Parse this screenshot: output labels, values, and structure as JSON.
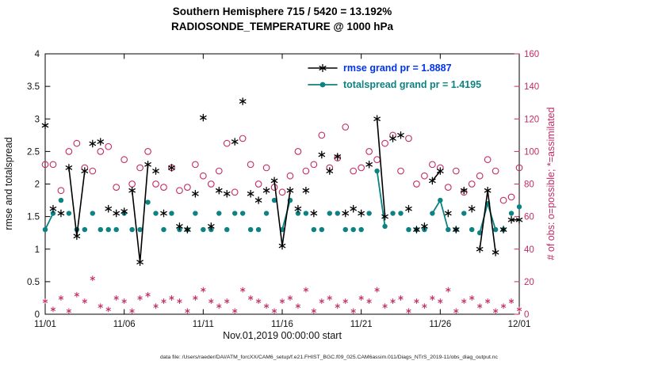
{
  "chart_data": {
    "type": "line",
    "title": {
      "line1": "Southern Hemisphere 715 / 5420 = 13.192%",
      "line2": "RADIOSONDE_TEMPERATURE @ 1000 hPa"
    },
    "xlabel": "Nov.01,2019 00:00:00 start",
    "ylabel_left": "rmse and totalspread",
    "ylabel_right": "# of obs: o=possible; *=assimilated",
    "caption": "data file: /Users/raeder/DAI/ATM_forcXX/CAM6_setup/f.e21.FHIST_BGC.f09_025.CAM6assim.011/Diags_NTrS_2019-11/obs_diag_output.nc",
    "grid": false,
    "legend_position": "top-center-inside",
    "colors": {
      "obs": "#c42a66",
      "spread": "#0d8282",
      "rmse": "#000000",
      "rmse_text": "#0033ee"
    },
    "xaxis": {
      "min": 0,
      "max": 30,
      "tick_days": [
        0,
        5,
        10,
        15,
        20,
        25,
        30
      ],
      "tick_labels": [
        "11/01",
        "11/06",
        "11/11",
        "11/16",
        "11/21",
        "11/26",
        "12/01"
      ]
    },
    "yaxis_left": {
      "min": 0,
      "max": 4,
      "ticks": [
        0,
        0.5,
        1,
        1.5,
        2,
        2.5,
        3,
        3.5,
        4
      ],
      "tick_labels": [
        "0",
        "0.5",
        "1",
        "1.5",
        "2",
        "2.5",
        "3",
        "3.5",
        "4"
      ]
    },
    "yaxis_right": {
      "min": 0,
      "max": 160,
      "ticks": [
        0,
        20,
        40,
        60,
        80,
        100,
        120,
        140,
        160
      ],
      "tick_labels": [
        "0",
        "20",
        "40",
        "60",
        "80",
        "100",
        "120",
        "140",
        "160"
      ]
    },
    "x_days": [
      0,
      0.5,
      1,
      1.5,
      2,
      2.5,
      3,
      3.5,
      4,
      4.5,
      5,
      5.5,
      6,
      6.5,
      7,
      7.5,
      8,
      8.5,
      9,
      9.5,
      10,
      10.5,
      11,
      11.5,
      12,
      12.5,
      13,
      13.5,
      14,
      14.5,
      15,
      15.5,
      16,
      16.5,
      17,
      17.5,
      18,
      18.5,
      19,
      19.5,
      20,
      20.5,
      21,
      21.5,
      22,
      22.5,
      23,
      23.5,
      24,
      24.5,
      25,
      25.5,
      26,
      26.5,
      27,
      27.5,
      28,
      28.5,
      29,
      29.5,
      30
    ],
    "series": [
      {
        "name": "rmse",
        "legend_label": "rmse grand pr = 1.8887",
        "grand_value": 1.8887,
        "marker": "asterisk",
        "color": "#000000",
        "text_color": "#0033ee",
        "axis": "left",
        "values": [
          2.9,
          1.62,
          1.55,
          2.25,
          1.2,
          2.2,
          2.62,
          2.65,
          1.62,
          1.55,
          1.58,
          1.9,
          0.8,
          2.3,
          2.2,
          1.55,
          2.25,
          1.35,
          1.3,
          1.85,
          3.02,
          1.35,
          1.9,
          1.85,
          2.65,
          3.27,
          1.85,
          1.75,
          1.9,
          2.05,
          1.05,
          1.9,
          1.62,
          1.9,
          1.55,
          2.45,
          2.2,
          2.42,
          1.55,
          1.62,
          1.55,
          2.3,
          3.0,
          1.5,
          2.7,
          2.75,
          1.62,
          1.3,
          1.35,
          2.05,
          2.2,
          1.55,
          1.3,
          1.9,
          1.62,
          1.0,
          1.9,
          0.95,
          1.3,
          1.45,
          1.45
        ],
        "line_segments": [
          [
            3,
            5
          ],
          [
            11,
            13
          ],
          [
            29,
            31
          ],
          [
            42,
            43
          ],
          [
            49,
            50
          ],
          [
            55,
            57
          ],
          [
            59,
            60
          ]
        ]
      },
      {
        "name": "totalspread",
        "legend_label": "totalspread grand pr = 1.4195",
        "grand_value": 1.4195,
        "marker": "dot",
        "color": "#0d8282",
        "text_color": "#0d8282",
        "axis": "left",
        "values": [
          1.3,
          1.55,
          1.75,
          1.55,
          1.3,
          1.3,
          1.55,
          1.3,
          1.3,
          1.3,
          1.55,
          1.3,
          1.3,
          1.72,
          1.55,
          1.3,
          1.55,
          1.3,
          1.3,
          1.55,
          1.3,
          1.3,
          1.55,
          1.3,
          1.55,
          1.55,
          1.3,
          1.3,
          1.55,
          1.75,
          1.3,
          1.75,
          1.55,
          1.55,
          1.3,
          1.3,
          1.55,
          1.55,
          1.3,
          1.3,
          1.3,
          1.55,
          2.2,
          1.35,
          1.55,
          1.55,
          1.3,
          1.3,
          1.3,
          1.55,
          1.75,
          1.3,
          1.3,
          1.55,
          1.3,
          1.25,
          1.7,
          1.3,
          1.3,
          1.55,
          1.65
        ],
        "line_segments": [
          [
            0,
            1
          ],
          [
            30,
            31
          ],
          [
            42,
            43
          ],
          [
            49,
            51
          ],
          [
            55,
            57
          ]
        ]
      },
      {
        "name": "possible",
        "legend_label": "o=possible",
        "marker": "open-circle",
        "color": "#c42a66",
        "axis": "right",
        "values": [
          92,
          92,
          76,
          100,
          105,
          90,
          88,
          100,
          103,
          78,
          95,
          80,
          90,
          100,
          80,
          78,
          90,
          76,
          78,
          92,
          85,
          80,
          88,
          105,
          75,
          108,
          92,
          80,
          90,
          78,
          75,
          85,
          100,
          88,
          92,
          110,
          90,
          96,
          115,
          88,
          90,
          100,
          95,
          105,
          110,
          88,
          108,
          80,
          85,
          92,
          90,
          78,
          88,
          75,
          80,
          85,
          95,
          88,
          70,
          72,
          90
        ]
      },
      {
        "name": "assimilated",
        "legend_label": "*=assimilated",
        "marker": "small-asterisk",
        "color": "#c42a66",
        "axis": "right",
        "values": [
          8,
          3,
          10,
          2,
          12,
          8,
          22,
          5,
          3,
          10,
          8,
          2,
          10,
          12,
          5,
          8,
          10,
          8,
          2,
          10,
          15,
          8,
          5,
          8,
          2,
          15,
          10,
          8,
          5,
          2,
          8,
          10,
          5,
          15,
          2,
          8,
          10,
          5,
          8,
          2,
          10,
          8,
          15,
          5,
          8,
          10,
          2,
          8,
          5,
          10,
          8,
          15,
          2,
          8,
          10,
          5,
          8,
          2,
          5,
          8,
          3
        ]
      }
    ]
  }
}
